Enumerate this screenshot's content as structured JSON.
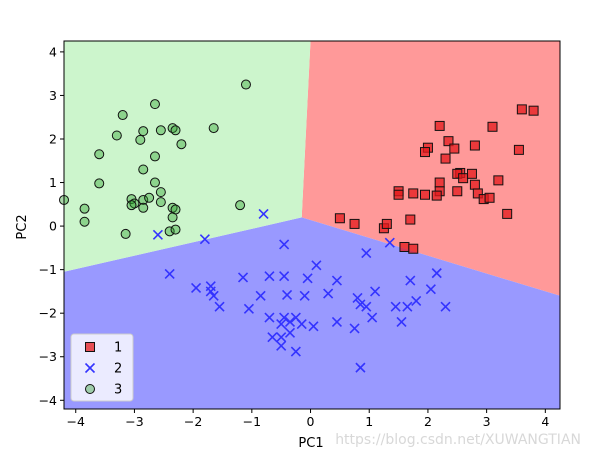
{
  "watermark": "https://blog.csdn.net/XUWANGTIAN",
  "chart_data": {
    "type": "scatter",
    "title": "",
    "xlabel": "PC1",
    "ylabel": "PC2",
    "xlim": [
      -4.2,
      4.25
    ],
    "ylim": [
      -4.2,
      4.25
    ],
    "xticks": [
      -4,
      -3,
      -2,
      -1,
      0,
      1,
      2,
      3,
      4
    ],
    "yticks": [
      -4,
      -3,
      -2,
      -1,
      0,
      1,
      2,
      3,
      4
    ],
    "grid": false,
    "legend": {
      "placement": "lower-left",
      "entries": [
        "1",
        "2",
        "3"
      ]
    },
    "regions": [
      {
        "class": "1",
        "color": "#ff9999",
        "polygon": [
          [
            0.0,
            4.25
          ],
          [
            4.25,
            4.25
          ],
          [
            4.25,
            -1.6
          ],
          [
            -0.15,
            0.2
          ]
        ]
      },
      {
        "class": "2",
        "color": "#9999ff",
        "polygon": [
          [
            -4.2,
            -4.2
          ],
          [
            4.25,
            -4.2
          ],
          [
            4.25,
            -1.6
          ],
          [
            -0.15,
            0.2
          ],
          [
            -4.2,
            -1.05
          ]
        ]
      },
      {
        "class": "3",
        "color": "#ccf5cc",
        "polygon": [
          [
            -4.2,
            -1.05
          ],
          [
            -0.15,
            0.2
          ],
          [
            0.0,
            4.25
          ],
          [
            -4.2,
            4.25
          ]
        ]
      }
    ],
    "series": [
      {
        "name": "1",
        "marker": "square",
        "color": "#e41a1c",
        "points": [
          [
            3.6,
            2.68
          ],
          [
            3.8,
            2.65
          ],
          [
            3.1,
            2.28
          ],
          [
            2.2,
            2.3
          ],
          [
            2.35,
            1.95
          ],
          [
            2.0,
            1.8
          ],
          [
            1.95,
            1.7
          ],
          [
            2.45,
            1.78
          ],
          [
            2.8,
            1.85
          ],
          [
            3.55,
            1.75
          ],
          [
            2.3,
            1.55
          ],
          [
            2.55,
            1.22
          ],
          [
            2.5,
            1.2
          ],
          [
            2.6,
            1.1
          ],
          [
            2.75,
            1.2
          ],
          [
            2.2,
            1.0
          ],
          [
            2.8,
            0.95
          ],
          [
            3.2,
            1.05
          ],
          [
            1.5,
            0.8
          ],
          [
            1.5,
            0.72
          ],
          [
            1.75,
            0.75
          ],
          [
            2.2,
            0.8
          ],
          [
            2.5,
            0.8
          ],
          [
            2.85,
            0.75
          ],
          [
            2.95,
            0.62
          ],
          [
            3.05,
            0.65
          ],
          [
            1.95,
            0.72
          ],
          [
            2.15,
            0.7
          ],
          [
            0.5,
            0.18
          ],
          [
            0.75,
            0.05
          ],
          [
            1.25,
            -0.05
          ],
          [
            1.3,
            0.05
          ],
          [
            1.7,
            0.15
          ],
          [
            3.35,
            0.28
          ],
          [
            1.6,
            -0.48
          ],
          [
            1.75,
            -0.52
          ]
        ]
      },
      {
        "name": "2",
        "marker": "x",
        "color": "#3333ff",
        "points": [
          [
            -0.8,
            0.28
          ],
          [
            -2.6,
            -0.2
          ],
          [
            -1.8,
            -0.3
          ],
          [
            -0.45,
            -0.42
          ],
          [
            1.35,
            -0.38
          ],
          [
            0.95,
            -0.62
          ],
          [
            0.1,
            -0.9
          ],
          [
            -2.4,
            -1.1
          ],
          [
            -1.15,
            -1.18
          ],
          [
            -0.7,
            -1.15
          ],
          [
            -0.45,
            -1.15
          ],
          [
            -0.05,
            -1.2
          ],
          [
            0.45,
            -1.25
          ],
          [
            1.7,
            -1.25
          ],
          [
            2.05,
            -1.45
          ],
          [
            2.15,
            -1.08
          ],
          [
            -1.95,
            -1.42
          ],
          [
            -1.7,
            -1.38
          ],
          [
            -1.7,
            -1.5
          ],
          [
            -1.65,
            -1.6
          ],
          [
            -1.55,
            -1.85
          ],
          [
            -1.05,
            -1.9
          ],
          [
            -0.85,
            -1.6
          ],
          [
            -0.4,
            -1.58
          ],
          [
            -0.1,
            -1.6
          ],
          [
            0.3,
            -1.55
          ],
          [
            0.8,
            -1.65
          ],
          [
            0.85,
            -1.8
          ],
          [
            1.1,
            -1.5
          ],
          [
            1.45,
            -1.85
          ],
          [
            1.65,
            -1.85
          ],
          [
            1.8,
            -1.72
          ],
          [
            1.55,
            -2.2
          ],
          [
            0.95,
            -1.85
          ],
          [
            1.05,
            -2.1
          ],
          [
            2.3,
            -1.85
          ],
          [
            0.45,
            -2.2
          ],
          [
            0.75,
            -2.35
          ],
          [
            -0.7,
            -2.1
          ],
          [
            -0.45,
            -2.1
          ],
          [
            -0.35,
            -2.2
          ],
          [
            -0.5,
            -2.25
          ],
          [
            -0.25,
            -2.1
          ],
          [
            -0.15,
            -2.25
          ],
          [
            0.05,
            -2.3
          ],
          [
            -0.65,
            -2.55
          ],
          [
            -0.5,
            -2.55
          ],
          [
            -0.35,
            -2.45
          ],
          [
            -0.5,
            -2.75
          ],
          [
            -0.25,
            -2.88
          ],
          [
            0.85,
            -3.25
          ]
        ]
      },
      {
        "name": "3",
        "marker": "circle",
        "color": "#2ca02c",
        "points": [
          [
            -1.1,
            3.25
          ],
          [
            -2.65,
            2.8
          ],
          [
            -3.2,
            2.55
          ],
          [
            -2.85,
            2.18
          ],
          [
            -2.55,
            2.2
          ],
          [
            -2.35,
            2.25
          ],
          [
            -2.3,
            2.2
          ],
          [
            -1.65,
            2.25
          ],
          [
            -3.3,
            2.08
          ],
          [
            -2.9,
            1.98
          ],
          [
            -2.2,
            1.88
          ],
          [
            -3.6,
            1.65
          ],
          [
            -2.65,
            1.6
          ],
          [
            -2.85,
            1.3
          ],
          [
            -2.65,
            1.0
          ],
          [
            -3.6,
            0.98
          ],
          [
            -2.55,
            0.78
          ],
          [
            -3.05,
            0.62
          ],
          [
            -2.85,
            0.6
          ],
          [
            -2.75,
            0.65
          ],
          [
            -2.55,
            0.55
          ],
          [
            -3.0,
            0.52
          ],
          [
            -3.05,
            0.48
          ],
          [
            -2.85,
            0.42
          ],
          [
            -2.35,
            0.42
          ],
          [
            -2.3,
            0.38
          ],
          [
            -2.35,
            0.2
          ],
          [
            -1.2,
            0.48
          ],
          [
            -3.85,
            0.4
          ],
          [
            -4.2,
            0.6
          ],
          [
            -3.85,
            0.1
          ],
          [
            -3.15,
            -0.18
          ],
          [
            -2.4,
            -0.12
          ],
          [
            -2.3,
            -0.08
          ]
        ]
      }
    ]
  }
}
